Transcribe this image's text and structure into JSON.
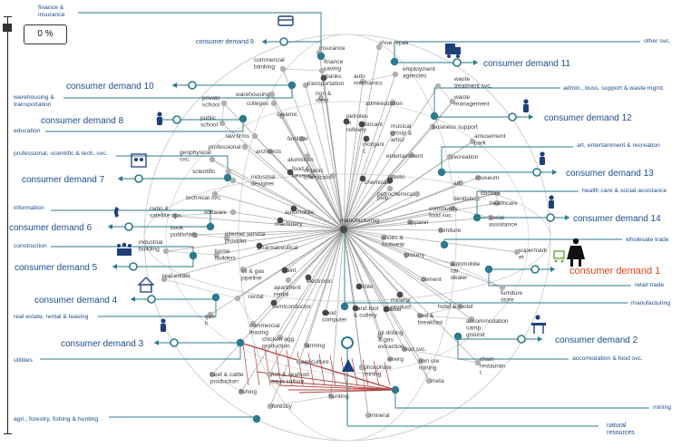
{
  "slider": {
    "value_label": "0 %",
    "level": 0
  },
  "colors": {
    "teal": "#2b7a8e",
    "blue_label": "#1a4d8c",
    "highlight": "#e0441a",
    "red_line": "#b04040",
    "gray_node": "#b0b0b0",
    "dark_node": "#4a4a4a"
  },
  "hub_labels": {
    "center": "manufacturing",
    "natural": "natural\nresources"
  },
  "sectors": [
    {
      "id": "finance",
      "label": "finance &\ninsurance"
    },
    {
      "id": "warehousing",
      "label": "warehousing &\ntransportation"
    },
    {
      "id": "education",
      "label": "education"
    },
    {
      "id": "professional",
      "label": "professional, scientific & tech. svc."
    },
    {
      "id": "information",
      "label": "information"
    },
    {
      "id": "construction",
      "label": "construction"
    },
    {
      "id": "realestate",
      "label": "real estate, rental & leasing"
    },
    {
      "id": "utilities",
      "label": "utilities"
    },
    {
      "id": "agri",
      "label": "agri., forestry, fishing & hunting"
    },
    {
      "id": "othersvc",
      "label": "other svc."
    },
    {
      "id": "admin",
      "label": "admin., buss. support & waste mgmt."
    },
    {
      "id": "art",
      "label": "art, entertainment & recreation"
    },
    {
      "id": "health",
      "label": "health care & social assistance"
    },
    {
      "id": "wholesale",
      "label": "wholesale trade"
    },
    {
      "id": "retail",
      "label": "retail trade"
    },
    {
      "id": "manuf",
      "label": "manufacturing"
    },
    {
      "id": "accom",
      "label": "accomodation & food svc."
    },
    {
      "id": "mining",
      "label": "mining"
    }
  ],
  "demands": [
    {
      "id": "d1",
      "label": "consumer demand 1",
      "highlight": true,
      "icon": "shopper-cart-icon"
    },
    {
      "id": "d2",
      "label": "consumer demand 2",
      "icon": "diner-table-icon"
    },
    {
      "id": "d3",
      "label": "consumer demand 3",
      "icon": "laundry-person-icon"
    },
    {
      "id": "d4",
      "label": "consumer demand 4",
      "icon": "family-home-icon"
    },
    {
      "id": "d5",
      "label": "consumer demand 5",
      "icon": "family-group-icon"
    },
    {
      "id": "d6",
      "label": "consumer demand 6",
      "icon": "telephone-icon"
    },
    {
      "id": "d7",
      "label": "consumer demand 7",
      "icon": "lab-worker-icon"
    },
    {
      "id": "d8",
      "label": "consumer demand 8",
      "icon": "graduate-icon"
    },
    {
      "id": "d9",
      "label": "consumer demand 9",
      "icon": "credit-card-icon"
    },
    {
      "id": "d10",
      "label": "consumer demand 10"
    },
    {
      "id": "d11",
      "label": "consumer demand 11",
      "icon": "delivery-truck-icon"
    },
    {
      "id": "d12",
      "label": "consumer demand 12",
      "icon": "office-worker-icon"
    },
    {
      "id": "d13",
      "label": "consumer demand 13",
      "icon": "golfer-icon"
    },
    {
      "id": "d14",
      "label": "consumer demand 14",
      "icon": "doctor-patient-icon"
    }
  ],
  "industries": [
    {
      "id": "insurance",
      "label": "insurance"
    },
    {
      "id": "shoerepair",
      "label": "shoe repair"
    },
    {
      "id": "commbanking",
      "label": "commercial\nbanking"
    },
    {
      "id": "finsaving",
      "label": "finance\nsaving"
    },
    {
      "id": "banks",
      "label": "banks"
    },
    {
      "id": "transportation",
      "label": "transportation"
    },
    {
      "id": "automech",
      "label": "auto\nmechanics"
    },
    {
      "id": "employment",
      "label": "employment\nagencies"
    },
    {
      "id": "privateschool",
      "label": "private\nschool"
    },
    {
      "id": "warehousing",
      "label": "warehousing"
    },
    {
      "id": "colleges",
      "label": "colleges"
    },
    {
      "id": "ironsteel",
      "label": "iron &\nsteel"
    },
    {
      "id": "administration",
      "label": "administration"
    },
    {
      "id": "wastetreat",
      "label": "waste\ntreatment svc."
    },
    {
      "id": "wastemgmt",
      "label": "waste\nmanagement"
    },
    {
      "id": "ceramic",
      "label": "ceramic"
    },
    {
      "id": "publicschool",
      "label": "public\nschool"
    },
    {
      "id": "lawfirms",
      "label": "law firms"
    },
    {
      "id": "petroleum",
      "label": "petroleu\nm\nrefinery"
    },
    {
      "id": "lubricant",
      "label": "lubricant"
    },
    {
      "id": "musical",
      "label": "musical\ngroup &\nartist"
    },
    {
      "id": "bizsupport",
      "label": "business support"
    },
    {
      "id": "professional",
      "label": "professional"
    },
    {
      "id": "fertilizer",
      "label": "fertilizer"
    },
    {
      "id": "architects",
      "label": "architects"
    },
    {
      "id": "aluminum",
      "label": "aluminum"
    },
    {
      "id": "inorganic",
      "label": "inorgani\nc"
    },
    {
      "id": "entertainment",
      "label": "entertainment"
    },
    {
      "id": "amusement",
      "label": "amusement\npark"
    },
    {
      "id": "recreation",
      "label": "recreation"
    },
    {
      "id": "geophysical",
      "label": "geophysical\nsvc."
    },
    {
      "id": "scientific",
      "label": "scientific"
    },
    {
      "id": "fooddrinks",
      "label": "food &\nbeverag"
    },
    {
      "id": "organic",
      "label": "organic\nchemicals"
    },
    {
      "id": "chemicals",
      "label": "chemicals"
    },
    {
      "id": "plastic",
      "label": "plastic"
    },
    {
      "id": "petrochemical",
      "label": "petrochemical"
    },
    {
      "id": "pulp",
      "label": "pulp"
    },
    {
      "id": "art",
      "label": "art"
    },
    {
      "id": "museum",
      "label": "museum"
    },
    {
      "id": "industrialdesigner",
      "label": "industrial\ndesigner"
    },
    {
      "id": "technicalsvc",
      "label": "technical svc."
    },
    {
      "id": "dentists",
      "label": "dentists"
    },
    {
      "id": "doctors",
      "label": "doctors"
    },
    {
      "id": "healthcare",
      "label": "healthcare"
    },
    {
      "id": "software",
      "label": "software"
    },
    {
      "id": "automobile1",
      "label": "automobile"
    },
    {
      "id": "community",
      "label": "community\nfood svc."
    },
    {
      "id": "radiosat",
      "label": "radio &\nsatellite ops."
    },
    {
      "id": "machinery",
      "label": "machinery"
    },
    {
      "id": "apparel",
      "label": "apparel"
    },
    {
      "id": "socialassist",
      "label": "social\nassistance"
    },
    {
      "id": "bookpub",
      "label": "book\npublishing"
    },
    {
      "id": "internetsvc",
      "label": "internet service\nprovider"
    },
    {
      "id": "shoesfootwear",
      "label": "shoes &\nfootwear"
    },
    {
      "id": "furniture",
      "label": "furniture"
    },
    {
      "id": "supermarket",
      "label": "supermark\net"
    },
    {
      "id": "pharma",
      "label": "pharmaceutical"
    },
    {
      "id": "indbuilding",
      "label": "industrial\nbuilding"
    },
    {
      "id": "homebuilders",
      "label": "home\nbuilders"
    },
    {
      "id": "grocery",
      "label": "grocery"
    },
    {
      "id": "automobile2",
      "label": "automobile\ncar\ndealer"
    },
    {
      "id": "oilgaspipe",
      "label": "oil & gas\npipeline"
    },
    {
      "id": "paint",
      "label": "paint"
    },
    {
      "id": "realestate",
      "label": "real estate"
    },
    {
      "id": "apartment",
      "label": "apartment\nrental"
    },
    {
      "id": "electronic",
      "label": "electronic"
    },
    {
      "id": "textile",
      "label": "textile"
    },
    {
      "id": "cement",
      "label": "cement"
    },
    {
      "id": "furniturestore",
      "label": "furniture\nstore"
    },
    {
      "id": "rental",
      "label": "rental"
    },
    {
      "id": "mineralprod",
      "label": "mineral\nproduct"
    },
    {
      "id": "semiconductor",
      "label": "semiconductor"
    },
    {
      "id": "handtool",
      "label": "hand tool\n& cutlery"
    },
    {
      "id": "rubber",
      "label": "rubber"
    },
    {
      "id": "hotelmotel",
      "label": "hotel & motel"
    },
    {
      "id": "gasutil",
      "label": "gas\nli"
    },
    {
      "id": "woodcomp",
      "label": "wood\ncomputer"
    },
    {
      "id": "bedbreakfast",
      "label": "bed &\nbreakfast"
    },
    {
      "id": "accommodation",
      "label": "accommodation\ncamp\nground"
    },
    {
      "id": "commleasing",
      "label": "commercial\nleasing"
    },
    {
      "id": "chickenegg",
      "label": "chicken egg\nproduction"
    },
    {
      "id": "farming",
      "label": "farming"
    },
    {
      "id": "oildrilling",
      "label": "oil drilling\n& gas\nextraction"
    },
    {
      "id": "foodsvc",
      "label": "food svc."
    },
    {
      "id": "agriculture",
      "label": "agriculture"
    },
    {
      "id": "energy",
      "label": "energ"
    },
    {
      "id": "ironore",
      "label": "iron ore\nmining"
    },
    {
      "id": "chain",
      "label": "chain\nrestauran\nt"
    },
    {
      "id": "beefcattle",
      "label": "beef & cattle\nproduction"
    },
    {
      "id": "fishseafood",
      "label": "fish & seafood\naqua culture"
    },
    {
      "id": "phosphate",
      "label": "phosphate\nmining"
    },
    {
      "id": "meta",
      "label": "meta"
    },
    {
      "id": "fishing",
      "label": "fishing"
    },
    {
      "id": "hunting",
      "label": "hunting"
    },
    {
      "id": "forestry",
      "label": "forestry"
    },
    {
      "id": "mineral",
      "label": "mineral"
    }
  ]
}
